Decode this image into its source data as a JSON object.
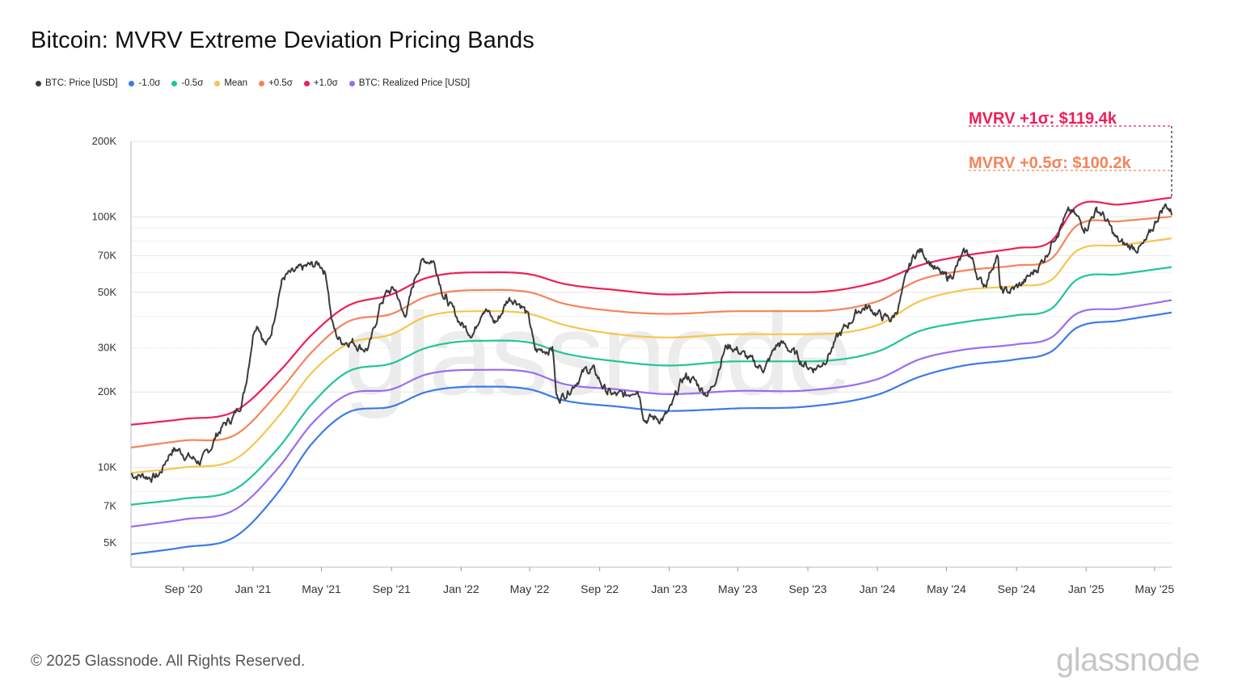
{
  "title": "Bitcoin: MVRV Extreme Deviation Pricing Bands",
  "legend": [
    {
      "label": "BTC: Price [USD]",
      "color": "#3a3a3a"
    },
    {
      "label": "-1.0σ",
      "color": "#3b7be8"
    },
    {
      "label": "-0.5σ",
      "color": "#22c49a"
    },
    {
      "label": "Mean",
      "color": "#f7c54e"
    },
    {
      "label": "+0.5σ",
      "color": "#f5845a"
    },
    {
      "label": "+1.0σ",
      "color": "#ee1f56"
    },
    {
      "label": "BTC: Realized Price [USD]",
      "color": "#9b6cf0"
    }
  ],
  "annotations": [
    {
      "text": "MVRV +1σ: $119.4k",
      "value": 119400,
      "color": "#ee1f56"
    },
    {
      "text": "MVRV +0.5σ: $100.2k",
      "value": 100200,
      "color": "#f5845a"
    }
  ],
  "footer": "© 2025 Glassnode. All Rights Reserved.",
  "brand": "glassnode",
  "watermark": "glassnode",
  "chart_data": {
    "type": "line",
    "yscale": "log",
    "ylim": [
      4000,
      200000
    ],
    "xlim": [
      "2020-06-01",
      "2025-05-31"
    ],
    "yticks": [
      {
        "label": "200K",
        "value": 200000
      },
      {
        "label": "100K",
        "value": 100000
      },
      {
        "label": "70K",
        "value": 70000
      },
      {
        "label": "50K",
        "value": 50000
      },
      {
        "label": "30K",
        "value": 30000
      },
      {
        "label": "20K",
        "value": 20000
      },
      {
        "label": "10K",
        "value": 10000
      },
      {
        "label": "7K",
        "value": 7000
      },
      {
        "label": "5K",
        "value": 5000
      }
    ],
    "xticks": [
      {
        "label": "Sep '20",
        "date": "2020-09-01"
      },
      {
        "label": "Jan '21",
        "date": "2021-01-01"
      },
      {
        "label": "May '21",
        "date": "2021-05-01"
      },
      {
        "label": "Sep '21",
        "date": "2021-09-01"
      },
      {
        "label": "Jan '22",
        "date": "2022-01-01"
      },
      {
        "label": "May '22",
        "date": "2022-05-01"
      },
      {
        "label": "Sep '22",
        "date": "2022-09-01"
      },
      {
        "label": "Jan '23",
        "date": "2023-01-01"
      },
      {
        "label": "May '23",
        "date": "2023-05-01"
      },
      {
        "label": "Sep '23",
        "date": "2023-09-01"
      },
      {
        "label": "Jan '24",
        "date": "2024-01-01"
      },
      {
        "label": "May '24",
        "date": "2024-05-01"
      },
      {
        "label": "Sep '24",
        "date": "2024-09-01"
      },
      {
        "label": "Jan '25",
        "date": "2025-01-01"
      },
      {
        "label": "May '25",
        "date": "2025-05-01"
      }
    ],
    "series": [
      {
        "name": "+1.0σ",
        "color": "#ee1f56",
        "points": [
          [
            "2020-06-01",
            14800
          ],
          [
            "2020-09-01",
            15600
          ],
          [
            "2020-12-01",
            16800
          ],
          [
            "2021-02-15",
            24000
          ],
          [
            "2021-04-15",
            34000
          ],
          [
            "2021-06-15",
            44000
          ],
          [
            "2021-09-01",
            49000
          ],
          [
            "2021-11-01",
            57000
          ],
          [
            "2022-02-01",
            60000
          ],
          [
            "2022-05-01",
            59000
          ],
          [
            "2022-07-01",
            54000
          ],
          [
            "2022-10-01",
            51000
          ],
          [
            "2023-01-01",
            49000
          ],
          [
            "2023-05-01",
            50000
          ],
          [
            "2023-09-01",
            50000
          ],
          [
            "2024-01-01",
            55000
          ],
          [
            "2024-03-15",
            64000
          ],
          [
            "2024-06-01",
            70000
          ],
          [
            "2024-09-01",
            75000
          ],
          [
            "2024-11-01",
            80000
          ],
          [
            "2024-12-15",
            110000
          ],
          [
            "2025-03-01",
            112000
          ],
          [
            "2025-05-31",
            119400
          ]
        ]
      },
      {
        "name": "+0.5σ",
        "color": "#f5845a",
        "points": [
          [
            "2020-06-01",
            12000
          ],
          [
            "2020-09-01",
            12800
          ],
          [
            "2020-12-01",
            13500
          ],
          [
            "2021-02-15",
            20000
          ],
          [
            "2021-04-15",
            29000
          ],
          [
            "2021-06-15",
            38000
          ],
          [
            "2021-09-01",
            41000
          ],
          [
            "2021-11-01",
            48000
          ],
          [
            "2022-02-01",
            51000
          ],
          [
            "2022-05-01",
            50000
          ],
          [
            "2022-07-01",
            45000
          ],
          [
            "2022-10-01",
            42000
          ],
          [
            "2023-01-01",
            41000
          ],
          [
            "2023-05-01",
            42000
          ],
          [
            "2023-09-01",
            42000
          ],
          [
            "2024-01-01",
            46000
          ],
          [
            "2024-03-15",
            56000
          ],
          [
            "2024-06-01",
            61000
          ],
          [
            "2024-09-01",
            64000
          ],
          [
            "2024-11-01",
            68000
          ],
          [
            "2024-12-15",
            92000
          ],
          [
            "2025-03-01",
            96000
          ],
          [
            "2025-05-31",
            100200
          ]
        ]
      },
      {
        "name": "Mean",
        "color": "#f7c54e",
        "points": [
          [
            "2020-06-01",
            9500
          ],
          [
            "2020-09-01",
            10000
          ],
          [
            "2020-12-01",
            10800
          ],
          [
            "2021-02-15",
            16000
          ],
          [
            "2021-04-15",
            24000
          ],
          [
            "2021-06-15",
            31000
          ],
          [
            "2021-09-01",
            34000
          ],
          [
            "2021-11-01",
            40000
          ],
          [
            "2022-02-01",
            42000
          ],
          [
            "2022-05-01",
            41000
          ],
          [
            "2022-07-01",
            37000
          ],
          [
            "2022-10-01",
            34000
          ],
          [
            "2023-01-01",
            33000
          ],
          [
            "2023-05-01",
            34000
          ],
          [
            "2023-09-01",
            34000
          ],
          [
            "2024-01-01",
            37000
          ],
          [
            "2024-03-15",
            46000
          ],
          [
            "2024-06-01",
            51000
          ],
          [
            "2024-09-01",
            53000
          ],
          [
            "2024-11-01",
            56000
          ],
          [
            "2024-12-15",
            73000
          ],
          [
            "2025-03-01",
            77000
          ],
          [
            "2025-05-31",
            82000
          ]
        ]
      },
      {
        "name": "-0.5σ",
        "color": "#22c49a",
        "points": [
          [
            "2020-06-01",
            7100
          ],
          [
            "2020-09-01",
            7500
          ],
          [
            "2020-12-01",
            8200
          ],
          [
            "2021-02-15",
            12000
          ],
          [
            "2021-04-15",
            18000
          ],
          [
            "2021-06-15",
            24000
          ],
          [
            "2021-09-01",
            26000
          ],
          [
            "2021-11-01",
            30000
          ],
          [
            "2022-02-01",
            32000
          ],
          [
            "2022-05-01",
            31500
          ],
          [
            "2022-07-01",
            28500
          ],
          [
            "2022-10-01",
            26500
          ],
          [
            "2023-01-01",
            25500
          ],
          [
            "2023-05-01",
            26500
          ],
          [
            "2023-09-01",
            26500
          ],
          [
            "2024-01-01",
            29000
          ],
          [
            "2024-03-15",
            35000
          ],
          [
            "2024-06-01",
            38000
          ],
          [
            "2024-09-01",
            40500
          ],
          [
            "2024-11-01",
            43000
          ],
          [
            "2024-12-15",
            56000
          ],
          [
            "2025-03-01",
            59000
          ],
          [
            "2025-05-31",
            63000
          ]
        ]
      },
      {
        "name": "BTC: Realized Price [USD]",
        "color": "#9b6cf0",
        "points": [
          [
            "2020-06-01",
            5800
          ],
          [
            "2020-09-01",
            6200
          ],
          [
            "2020-12-01",
            6800
          ],
          [
            "2021-02-15",
            10000
          ],
          [
            "2021-04-15",
            15000
          ],
          [
            "2021-06-15",
            19500
          ],
          [
            "2021-09-01",
            20500
          ],
          [
            "2021-11-01",
            23500
          ],
          [
            "2022-02-01",
            24500
          ],
          [
            "2022-05-01",
            24000
          ],
          [
            "2022-07-01",
            21500
          ],
          [
            "2022-10-01",
            20500
          ],
          [
            "2023-01-01",
            19600
          ],
          [
            "2023-05-01",
            20200
          ],
          [
            "2023-09-01",
            20300
          ],
          [
            "2024-01-01",
            22500
          ],
          [
            "2024-03-15",
            27000
          ],
          [
            "2024-06-01",
            29500
          ],
          [
            "2024-09-01",
            31000
          ],
          [
            "2024-11-01",
            33000
          ],
          [
            "2024-12-15",
            41000
          ],
          [
            "2025-03-01",
            43000
          ],
          [
            "2025-05-31",
            46500
          ]
        ]
      },
      {
        "name": "-1.0σ",
        "color": "#3b7be8",
        "points": [
          [
            "2020-06-01",
            4500
          ],
          [
            "2020-09-01",
            4800
          ],
          [
            "2020-12-01",
            5300
          ],
          [
            "2021-02-15",
            8000
          ],
          [
            "2021-04-15",
            12500
          ],
          [
            "2021-06-15",
            16500
          ],
          [
            "2021-09-01",
            17500
          ],
          [
            "2021-11-01",
            20000
          ],
          [
            "2022-02-01",
            21000
          ],
          [
            "2022-05-01",
            20500
          ],
          [
            "2022-07-01",
            18500
          ],
          [
            "2022-10-01",
            17500
          ],
          [
            "2023-01-01",
            16800
          ],
          [
            "2023-05-01",
            17200
          ],
          [
            "2023-09-01",
            17500
          ],
          [
            "2024-01-01",
            19500
          ],
          [
            "2024-03-15",
            23000
          ],
          [
            "2024-06-01",
            25500
          ],
          [
            "2024-09-01",
            27000
          ],
          [
            "2024-11-01",
            29000
          ],
          [
            "2024-12-15",
            36000
          ],
          [
            "2025-03-01",
            38500
          ],
          [
            "2025-05-31",
            41500
          ]
        ]
      },
      {
        "name": "BTC: Price [USD]",
        "color": "#3a3a3a",
        "points": [
          [
            "2020-06-01",
            9400
          ],
          [
            "2020-07-15",
            9200
          ],
          [
            "2020-08-15",
            11800
          ],
          [
            "2020-10-01",
            10600
          ],
          [
            "2020-11-01",
            13800
          ],
          [
            "2020-12-15",
            19500
          ],
          [
            "2021-01-08",
            38000
          ],
          [
            "2021-01-25",
            31000
          ],
          [
            "2021-02-20",
            55000
          ],
          [
            "2021-03-15",
            59000
          ],
          [
            "2021-04-14",
            63500
          ],
          [
            "2021-05-10",
            57000
          ],
          [
            "2021-05-20",
            38000
          ],
          [
            "2021-06-25",
            32000
          ],
          [
            "2021-07-20",
            30000
          ],
          [
            "2021-08-15",
            46000
          ],
          [
            "2021-09-07",
            51000
          ],
          [
            "2021-09-22",
            41000
          ],
          [
            "2021-10-20",
            64000
          ],
          [
            "2021-11-10",
            67500
          ],
          [
            "2021-12-04",
            48000
          ],
          [
            "2022-01-22",
            35000
          ],
          [
            "2022-02-10",
            44000
          ],
          [
            "2022-03-01",
            38000
          ],
          [
            "2022-03-29",
            47500
          ],
          [
            "2022-05-01",
            38000
          ],
          [
            "2022-05-12",
            29000
          ],
          [
            "2022-06-10",
            30000
          ],
          [
            "2022-06-18",
            19000
          ],
          [
            "2022-08-15",
            24500
          ],
          [
            "2022-09-15",
            20000
          ],
          [
            "2022-10-15",
            19200
          ],
          [
            "2022-11-05",
            21000
          ],
          [
            "2022-11-21",
            15800
          ],
          [
            "2022-12-31",
            16500
          ],
          [
            "2023-01-31",
            23000
          ],
          [
            "2023-03-10",
            20000
          ],
          [
            "2023-04-14",
            30500
          ],
          [
            "2023-06-15",
            25000
          ],
          [
            "2023-07-13",
            31000
          ],
          [
            "2023-09-11",
            25000
          ],
          [
            "2023-10-31",
            34500
          ],
          [
            "2023-12-10",
            43500
          ],
          [
            "2024-01-23",
            39000
          ],
          [
            "2024-03-14",
            73000
          ],
          [
            "2024-05-01",
            57000
          ],
          [
            "2024-06-07",
            71000
          ],
          [
            "2024-07-05",
            54000
          ],
          [
            "2024-07-29",
            69000
          ],
          [
            "2024-08-05",
            50000
          ],
          [
            "2024-09-06",
            53000
          ],
          [
            "2024-10-20",
            69000
          ],
          [
            "2024-11-12",
            89000
          ],
          [
            "2024-12-05",
            103000
          ],
          [
            "2024-12-30",
            92000
          ],
          [
            "2025-01-20",
            106000
          ],
          [
            "2025-02-28",
            79000
          ],
          [
            "2025-04-08",
            76000
          ],
          [
            "2025-05-22",
            111000
          ],
          [
            "2025-05-31",
            104000
          ]
        ]
      }
    ]
  }
}
